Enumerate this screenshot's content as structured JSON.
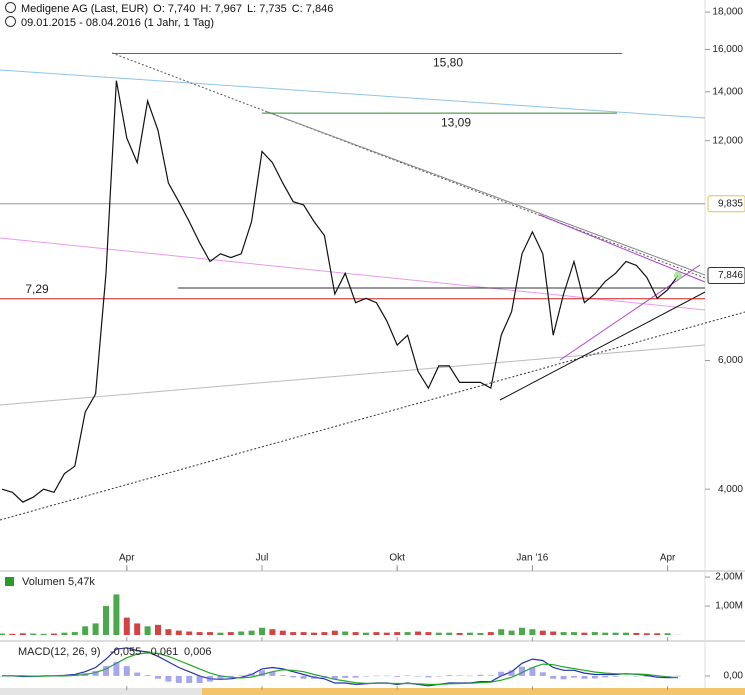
{
  "chart_data": [
    {
      "type": "line",
      "title": "Medigene AG (Last, EUR)",
      "ohlc": [
        "O: 7,740",
        "H: 7,967",
        "L: 7,735",
        "C: 7,846"
      ],
      "subtitle": "09.01.2015 - 08.04.2016 (1 Jahr, 1 Tag)",
      "categories": [
        null,
        null,
        null,
        null,
        null,
        null,
        null,
        null,
        null,
        null,
        null,
        null,
        "Apr",
        null,
        null,
        null,
        null,
        null,
        null,
        null,
        null,
        null,
        null,
        null,
        null,
        "Jul",
        null,
        null,
        null,
        null,
        null,
        null,
        null,
        null,
        null,
        null,
        null,
        null,
        "Okt",
        null,
        null,
        null,
        null,
        null,
        null,
        null,
        null,
        null,
        null,
        null,
        null,
        "Jan '16",
        null,
        null,
        null,
        null,
        null,
        null,
        null,
        null,
        null,
        null,
        null,
        null,
        "Apr",
        null
      ],
      "values": [
        4.0,
        3.96,
        3.84,
        3.9,
        4.0,
        3.96,
        4.2,
        4.3,
        5.1,
        5.4,
        7.9,
        14.5,
        12.1,
        11.2,
        13.6,
        12.4,
        10.5,
        9.9,
        9.3,
        8.7,
        8.2,
        8.4,
        8.3,
        8.4,
        9.3,
        11.6,
        11.2,
        10.5,
        9.9,
        9.8,
        9.3,
        8.9,
        7.4,
        7.9,
        7.2,
        7.3,
        7.2,
        6.8,
        6.3,
        6.5,
        5.8,
        5.5,
        5.9,
        5.9,
        5.6,
        5.6,
        5.6,
        5.5,
        6.5,
        7.0,
        8.4,
        9.0,
        8.4,
        6.5,
        7.4,
        8.2,
        7.2,
        7.4,
        7.7,
        7.9,
        8.2,
        8.1,
        7.8,
        7.3,
        7.5,
        7.846
      ],
      "value_labels": [
        null,
        null,
        null,
        null,
        null,
        null,
        null,
        null,
        null,
        null,
        null,
        null,
        null,
        null,
        null,
        null,
        null,
        null,
        null,
        null,
        null,
        null,
        null,
        null,
        null,
        null,
        null,
        null,
        null,
        null,
        null,
        null,
        null,
        null,
        null,
        null,
        null,
        null,
        null,
        null,
        null,
        null,
        null,
        null,
        null,
        null,
        null,
        null,
        null,
        null,
        null,
        null,
        null,
        null,
        null,
        null,
        null,
        null,
        null,
        null,
        null,
        null,
        null,
        null,
        null,
        "7,846"
      ],
      "color": "#111111",
      "log_scale": true,
      "ylim": [
        3.1,
        18.7
      ],
      "yticks": [
        {
          "value": 18,
          "label": "18,000"
        },
        {
          "value": 16,
          "label": "16,000"
        },
        {
          "value": 14,
          "label": "14,000"
        },
        {
          "value": 12,
          "label": "12,000"
        },
        {
          "value": 6,
          "label": "6,000"
        },
        {
          "value": 4,
          "label": "4,000"
        }
      ],
      "annotations": [
        {
          "value": 15.8,
          "label": "15,80",
          "color": "#3a66cc"
        },
        {
          "value": 13.09,
          "label": "13,09",
          "color": "#2a8a2a"
        },
        {
          "value": 7.29,
          "label": "7,29",
          "color": "#cc2222"
        },
        {
          "value": 9.835,
          "label": "9,835",
          "color": "#999999"
        }
      ]
    },
    {
      "type": "bar",
      "title": "Volumen",
      "values": [
        50000,
        40000,
        60000,
        50000,
        40000,
        50000,
        80000,
        100000,
        300000,
        400000,
        1000000,
        1400000,
        600000,
        400000,
        300000,
        350000,
        200000,
        150000,
        120000,
        100000,
        100000,
        80000,
        100000,
        120000,
        150000,
        250000,
        200000,
        150000,
        100000,
        100000,
        80000,
        100000,
        150000,
        120000,
        100000,
        80000,
        100000,
        80000,
        100000,
        100000,
        120000,
        100000,
        80000,
        80000,
        70000,
        80000,
        70000,
        100000,
        200000,
        150000,
        250000,
        200000,
        150000,
        120000,
        100000,
        100000,
        80000,
        100000,
        80000,
        80000,
        80000,
        70000,
        60000,
        60000,
        60000,
        5470
      ],
      "value_labels": [
        null,
        null,
        null,
        null,
        null,
        null,
        null,
        null,
        null,
        null,
        null,
        null,
        null,
        null,
        null,
        null,
        null,
        null,
        null,
        null,
        null,
        null,
        null,
        null,
        null,
        null,
        null,
        null,
        null,
        null,
        null,
        null,
        null,
        null,
        null,
        null,
        null,
        null,
        null,
        null,
        null,
        null,
        null,
        null,
        null,
        null,
        null,
        null,
        null,
        null,
        null,
        null,
        null,
        null,
        null,
        null,
        null,
        null,
        null,
        null,
        null,
        null,
        null,
        null,
        null,
        "5,47k"
      ],
      "up_color": "#2a9a2a",
      "down_color": "#cc2222",
      "ylim": [
        0,
        2140000
      ],
      "yticks": [
        {
          "value": 2000000,
          "label": "2,00M"
        },
        {
          "value": 1000000,
          "label": "1,00M"
        }
      ]
    },
    {
      "type": "line",
      "title": "MACD(12, 26, 9)",
      "ylim": [
        -0.5,
        1.1
      ],
      "yticks": [
        {
          "value": 0,
          "label": "0,00"
        }
      ],
      "series": [
        {
          "color": "#2233aa",
          "values": [
            0,
            0,
            -0.02,
            -0.02,
            0,
            0,
            0.02,
            0.05,
            0.15,
            0.3,
            0.6,
            0.95,
            1.0,
            0.9,
            0.85,
            0.7,
            0.5,
            0.3,
            0.15,
            0.0,
            -0.1,
            -0.12,
            -0.1,
            -0.05,
            0.05,
            0.25,
            0.3,
            0.25,
            0.15,
            0.05,
            -0.05,
            -0.1,
            -0.25,
            -0.25,
            -0.3,
            -0.28,
            -0.25,
            -0.25,
            -0.3,
            -0.25,
            -0.3,
            -0.35,
            -0.3,
            -0.25,
            -0.25,
            -0.25,
            -0.2,
            -0.2,
            0.0,
            0.15,
            0.45,
            0.6,
            0.55,
            0.3,
            0.2,
            0.2,
            0.1,
            0.05,
            0.05,
            0.05,
            0.08,
            0.06,
            0.02,
            -0.05,
            -0.06,
            -0.055
          ],
          "value_labels": [
            null,
            null,
            null,
            null,
            null,
            null,
            null,
            null,
            null,
            null,
            null,
            null,
            null,
            null,
            null,
            null,
            null,
            null,
            null,
            null,
            null,
            null,
            null,
            null,
            null,
            null,
            null,
            null,
            null,
            null,
            null,
            null,
            null,
            null,
            null,
            null,
            null,
            null,
            null,
            null,
            null,
            null,
            null,
            null,
            null,
            null,
            null,
            null,
            null,
            null,
            null,
            null,
            null,
            null,
            null,
            null,
            null,
            null,
            null,
            null,
            null,
            null,
            null,
            null,
            null,
            "-0,055"
          ]
        },
        {
          "color": "#22aa22",
          "values": [
            0,
            0,
            0,
            -0.01,
            -0.01,
            0,
            0,
            0.02,
            0.05,
            0.12,
            0.25,
            0.45,
            0.65,
            0.78,
            0.82,
            0.8,
            0.7,
            0.55,
            0.4,
            0.25,
            0.1,
            0.0,
            -0.05,
            -0.07,
            -0.04,
            0.05,
            0.15,
            0.22,
            0.2,
            0.15,
            0.05,
            -0.03,
            -0.12,
            -0.18,
            -0.24,
            -0.26,
            -0.26,
            -0.26,
            -0.27,
            -0.27,
            -0.28,
            -0.3,
            -0.3,
            -0.28,
            -0.27,
            -0.26,
            -0.24,
            -0.22,
            -0.15,
            -0.05,
            0.12,
            0.3,
            0.42,
            0.4,
            0.32,
            0.26,
            0.2,
            0.14,
            0.1,
            0.08,
            0.07,
            0.07,
            0.05,
            0.01,
            -0.03,
            -0.061
          ],
          "value_labels": [
            null,
            null,
            null,
            null,
            null,
            null,
            null,
            null,
            null,
            null,
            null,
            null,
            null,
            null,
            null,
            null,
            null,
            null,
            null,
            null,
            null,
            null,
            null,
            null,
            null,
            null,
            null,
            null,
            null,
            null,
            null,
            null,
            null,
            null,
            null,
            null,
            null,
            null,
            null,
            null,
            null,
            null,
            null,
            null,
            null,
            null,
            null,
            null,
            null,
            null,
            null,
            null,
            null,
            null,
            null,
            null,
            null,
            null,
            null,
            null,
            null,
            null,
            null,
            null,
            null,
            "-0,061"
          ]
        },
        {
          "color": "#6a6adf",
          "bars": true,
          "values": [
            0,
            0,
            -0.02,
            -0.01,
            0.01,
            0,
            0.02,
            0.03,
            0.1,
            0.18,
            0.35,
            0.5,
            0.35,
            0.12,
            0.03,
            -0.1,
            -0.2,
            -0.25,
            -0.25,
            -0.25,
            -0.2,
            -0.12,
            -0.05,
            0.02,
            0.09,
            0.2,
            0.15,
            0.03,
            -0.05,
            -0.1,
            -0.1,
            -0.07,
            -0.13,
            -0.07,
            -0.06,
            -0.02,
            0.01,
            0.01,
            -0.03,
            0.02,
            -0.02,
            -0.05,
            0,
            0.03,
            0.02,
            0.01,
            0.04,
            0.02,
            0.15,
            0.2,
            0.33,
            0.3,
            0.13,
            -0.1,
            -0.12,
            -0.06,
            -0.1,
            -0.09,
            -0.05,
            -0.03,
            0.01,
            -0.01,
            -0.03,
            -0.06,
            -0.03,
            0.006
          ],
          "value_labels": [
            null,
            null,
            null,
            null,
            null,
            null,
            null,
            null,
            null,
            null,
            null,
            null,
            null,
            null,
            null,
            null,
            null,
            null,
            null,
            null,
            null,
            null,
            null,
            null,
            null,
            null,
            null,
            null,
            null,
            null,
            null,
            null,
            null,
            null,
            null,
            null,
            null,
            null,
            null,
            null,
            null,
            null,
            null,
            null,
            null,
            null,
            null,
            null,
            null,
            null,
            null,
            null,
            null,
            null,
            null,
            null,
            null,
            null,
            null,
            null,
            null,
            null,
            null,
            null,
            null,
            "0,006"
          ]
        }
      ]
    }
  ]
}
